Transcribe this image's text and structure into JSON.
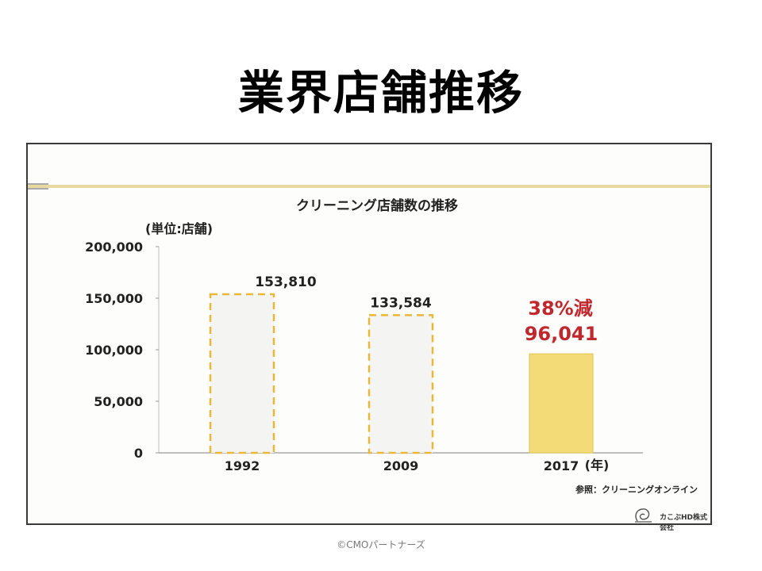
{
  "title": "業界店舗推移",
  "footer": "©CMOパートナーズ",
  "chart": {
    "unit_label": "(単位:店舗)",
    "source": "参照：クリーニングオンライン",
    "company": "カこぶHD株式会社",
    "callout": "38%減",
    "year_unit": "(年)"
  },
  "chart_data": {
    "type": "bar",
    "title": "クリーニング店舗数の推移",
    "categories": [
      "1992",
      "2009",
      "2017"
    ],
    "values": [
      153810,
      133584,
      96041
    ],
    "value_labels": [
      "153,810",
      "133,584",
      "96,041"
    ],
    "ylim": [
      0,
      200000
    ],
    "yticks": [
      0,
      50000,
      100000,
      150000,
      200000
    ],
    "ytick_labels": [
      "0",
      "50,000",
      "100,000",
      "150,000",
      "200,000"
    ],
    "bar_styles": [
      "dashed-outline",
      "dashed-outline",
      "filled"
    ],
    "colors": {
      "bar_outline": "#e8b83a",
      "bar_fill": "#f3dc78",
      "callout": "#c0282d"
    }
  }
}
